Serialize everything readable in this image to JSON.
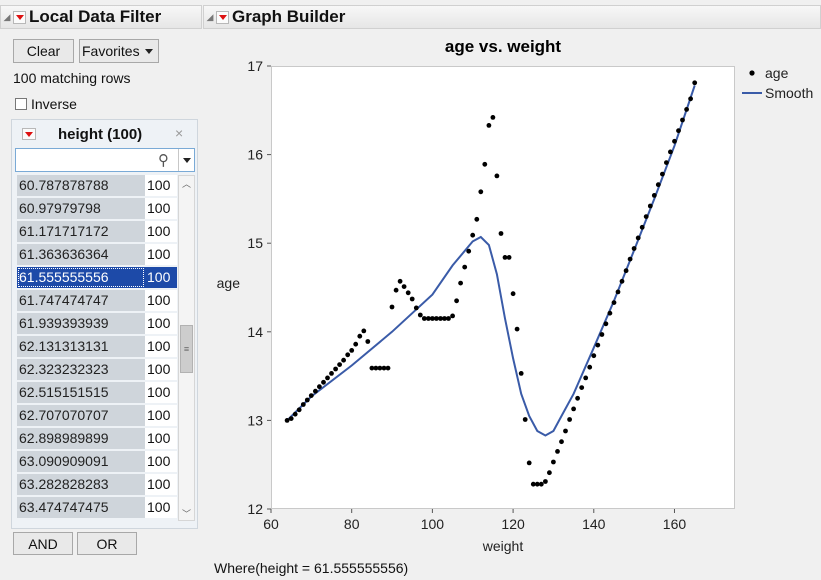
{
  "left_panel": {
    "title": "Local Data Filter",
    "clear_label": "Clear",
    "favorites_label": "Favorites",
    "matching_text": "100 matching rows",
    "inverse_label": "Inverse",
    "filter": {
      "title": "height (100)",
      "close_glyph": "×",
      "search_value": "",
      "rows": [
        {
          "value": "60.787878788",
          "count": "100"
        },
        {
          "value": "60.97979798",
          "count": "100"
        },
        {
          "value": "61.171717172",
          "count": "100"
        },
        {
          "value": "61.363636364",
          "count": "100"
        },
        {
          "value": "61.555555556",
          "count": "100",
          "selected": true
        },
        {
          "value": "61.747474747",
          "count": "100"
        },
        {
          "value": "61.939393939",
          "count": "100"
        },
        {
          "value": "62.131313131",
          "count": "100"
        },
        {
          "value": "62.323232323",
          "count": "100"
        },
        {
          "value": "62.515151515",
          "count": "100"
        },
        {
          "value": "62.707070707",
          "count": "100"
        },
        {
          "value": "62.898989899",
          "count": "100"
        },
        {
          "value": "63.090909091",
          "count": "100"
        },
        {
          "value": "63.282828283",
          "count": "100"
        },
        {
          "value": "63.474747475",
          "count": "100"
        }
      ],
      "scrollbar": {
        "position": 0.5
      }
    },
    "and_label": "AND",
    "or_label": "OR"
  },
  "graph_builder": {
    "title": "Graph Builder",
    "where_text": "Where(height = 61.555555556)"
  },
  "chart_data": {
    "type": "scatter",
    "title": "age vs. weight",
    "xlabel": "weight",
    "ylabel": "age",
    "xlim": [
      60,
      175
    ],
    "ylim": [
      12,
      17
    ],
    "xticks": [
      60,
      80,
      100,
      120,
      140,
      160
    ],
    "yticks": [
      12,
      13,
      14,
      15,
      16,
      17
    ],
    "grid": false,
    "legend_position": "top-right",
    "colors": {
      "points": "#000000",
      "smooth": "#3a5ba8"
    },
    "series": [
      {
        "name": "age",
        "type": "scatter",
        "points": [
          [
            64,
            13.0
          ],
          [
            65,
            13.02
          ],
          [
            66,
            13.07
          ],
          [
            67,
            13.12
          ],
          [
            68,
            13.18
          ],
          [
            69,
            13.23
          ],
          [
            70,
            13.28
          ],
          [
            71,
            13.33
          ],
          [
            72,
            13.38
          ],
          [
            73,
            13.43
          ],
          [
            74,
            13.48
          ],
          [
            75,
            13.53
          ],
          [
            76,
            13.58
          ],
          [
            77,
            13.63
          ],
          [
            78,
            13.68
          ],
          [
            79,
            13.74
          ],
          [
            80,
            13.79
          ],
          [
            81,
            13.86
          ],
          [
            82,
            13.95
          ],
          [
            83,
            14.01
          ],
          [
            84,
            13.89
          ],
          [
            85,
            13.59
          ],
          [
            86,
            13.59
          ],
          [
            87,
            13.59
          ],
          [
            88,
            13.59
          ],
          [
            89,
            13.59
          ],
          [
            90,
            14.28
          ],
          [
            91,
            14.47
          ],
          [
            92,
            14.57
          ],
          [
            93,
            14.51
          ],
          [
            94,
            14.44
          ],
          [
            95,
            14.37
          ],
          [
            96,
            14.27
          ],
          [
            97,
            14.19
          ],
          [
            98,
            14.15
          ],
          [
            99,
            14.15
          ],
          [
            100,
            14.15
          ],
          [
            101,
            14.15
          ],
          [
            102,
            14.15
          ],
          [
            103,
            14.15
          ],
          [
            104,
            14.15
          ],
          [
            105,
            14.18
          ],
          [
            106,
            14.35
          ],
          [
            107,
            14.55
          ],
          [
            108,
            14.73
          ],
          [
            109,
            14.91
          ],
          [
            110,
            15.09
          ],
          [
            111,
            15.27
          ],
          [
            112,
            15.58
          ],
          [
            113,
            15.89
          ],
          [
            114,
            16.33
          ],
          [
            115,
            16.42
          ],
          [
            116,
            15.76
          ],
          [
            117,
            15.11
          ],
          [
            118,
            14.84
          ],
          [
            119,
            14.84
          ],
          [
            120,
            14.43
          ],
          [
            121,
            14.03
          ],
          [
            122,
            13.53
          ],
          [
            123,
            13.01
          ],
          [
            124,
            12.52
          ],
          [
            125,
            12.28
          ],
          [
            126,
            12.28
          ],
          [
            127,
            12.28
          ],
          [
            128,
            12.31
          ],
          [
            129,
            12.41
          ],
          [
            130,
            12.53
          ],
          [
            131,
            12.65
          ],
          [
            132,
            12.76
          ],
          [
            133,
            12.88
          ],
          [
            134,
            13.01
          ],
          [
            135,
            13.13
          ],
          [
            136,
            13.25
          ],
          [
            137,
            13.37
          ],
          [
            138,
            13.48
          ],
          [
            139,
            13.6
          ],
          [
            140,
            13.73
          ],
          [
            141,
            13.85
          ],
          [
            142,
            13.97
          ],
          [
            143,
            14.09
          ],
          [
            144,
            14.21
          ],
          [
            145,
            14.33
          ],
          [
            146,
            14.45
          ],
          [
            147,
            14.57
          ],
          [
            148,
            14.69
          ],
          [
            149,
            14.82
          ],
          [
            150,
            14.94
          ],
          [
            151,
            15.06
          ],
          [
            152,
            15.18
          ],
          [
            153,
            15.3
          ],
          [
            154,
            15.42
          ],
          [
            155,
            15.54
          ],
          [
            156,
            15.66
          ],
          [
            157,
            15.78
          ],
          [
            158,
            15.91
          ],
          [
            159,
            16.03
          ],
          [
            160,
            16.15
          ],
          [
            161,
            16.27
          ],
          [
            162,
            16.39
          ],
          [
            163,
            16.51
          ],
          [
            164,
            16.63
          ],
          [
            165,
            16.81
          ]
        ]
      },
      {
        "name": "Smooth",
        "type": "line",
        "points": [
          [
            64,
            13.0
          ],
          [
            70,
            13.27
          ],
          [
            80,
            13.62
          ],
          [
            90,
            14.0
          ],
          [
            100,
            14.42
          ],
          [
            105,
            14.75
          ],
          [
            110,
            15.02
          ],
          [
            112,
            15.07
          ],
          [
            114,
            14.98
          ],
          [
            116,
            14.65
          ],
          [
            118,
            14.15
          ],
          [
            120,
            13.7
          ],
          [
            122,
            13.3
          ],
          [
            124,
            13.05
          ],
          [
            126,
            12.88
          ],
          [
            128,
            12.83
          ],
          [
            130,
            12.88
          ],
          [
            132,
            13.05
          ],
          [
            135,
            13.3
          ],
          [
            140,
            13.82
          ],
          [
            145,
            14.35
          ],
          [
            150,
            14.92
          ],
          [
            155,
            15.5
          ],
          [
            160,
            16.1
          ],
          [
            165,
            16.78
          ]
        ]
      }
    ]
  }
}
